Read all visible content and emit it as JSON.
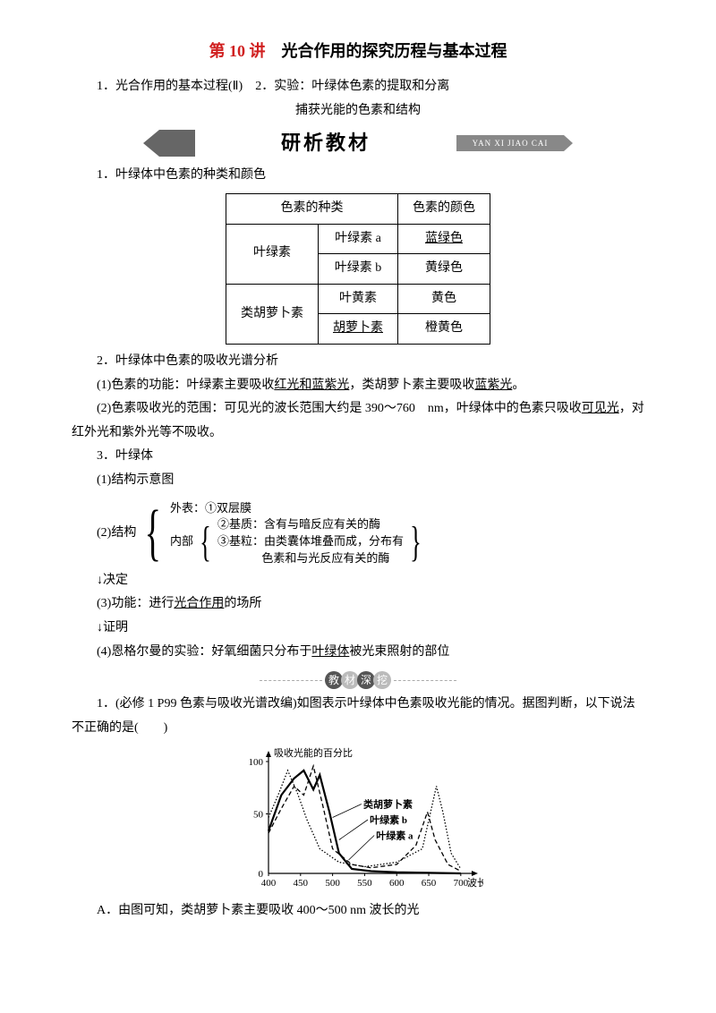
{
  "title": {
    "red": "第 10 讲",
    "black": "　光合作用的探究历程与基本过程"
  },
  "sub1": "1．光合作用的基本过程(Ⅱ)　2．实验：叶绿体色素的提取和分离",
  "sub2": "捕获光能的色素和结构",
  "banner1": {
    "text": "研析教材",
    "pinyin": "YAN XI JIAO CAI"
  },
  "sec1": "1．叶绿体中色素的种类和颜色",
  "table": {
    "h1": "色素的种类",
    "h2": "色素的颜色",
    "g1": "叶绿素",
    "g2": "类胡萝卜素",
    "r1a": "叶绿素 a",
    "r1b": "蓝绿色",
    "r2a": "叶绿素 b",
    "r2b": "黄绿色",
    "r3a": "叶黄素",
    "r3b": "黄色",
    "r4a": "胡萝卜素",
    "r4b": "橙黄色"
  },
  "sec2": "2．叶绿体中色素的吸收光谱分析",
  "p1a": "(1)色素的功能：叶绿素主要吸收",
  "p1u1": "红光和蓝紫光",
  "p1b": "，类胡萝卜素主要吸收",
  "p1u2": "蓝紫光",
  "p1c": "。",
  "p2a": "(2)色素吸收光的范围：可见光的波长范围大约是 390～760　nm，叶绿体中的色素只吸收",
  "p2u": "可见光",
  "p2b": "，对红外光和紫外光等不吸收。",
  "sec3": "3．叶绿体",
  "p3": "(1)结构示意图",
  "struct": {
    "label": "(2)结构",
    "outer": "外表：①双层膜",
    "inner_label": "内部",
    "i2": "②基质：含有与暗反应有关的酶",
    "i3a": "③基粒：由类囊体堆叠而成，分布有",
    "i3b": "色素和与光反应有关的酶"
  },
  "arrow1": "↓决定",
  "p4a": "(3)功能：进行",
  "p4u": "光合作用",
  "p4b": "的场所",
  "arrow2": "↓证明",
  "p5a": "(4)恩格尔曼的实验：好氧细菌只分布于",
  "p5u": "叶绿体",
  "p5b": "被光束照射的部位",
  "pill": {
    "c1": "教",
    "c2": "材",
    "c3": "深",
    "c4": "挖"
  },
  "q1": "1．(必修 1 P99 色素与吸收光谱改编)如图表示叶绿体中色素吸收光能的情况。据图判断，以下说法不正确的是(　　)",
  "chart": {
    "ylabel": "吸收光能的百分比",
    "xlabel": "波长(nm)",
    "yTicks": [
      "0",
      "50",
      "100"
    ],
    "xTicks": [
      "400",
      "450",
      "500",
      "550",
      "600",
      "650",
      "700"
    ],
    "l1": "类胡萝卜素",
    "l2": "叶绿素 b",
    "l3": "叶绿素 a",
    "colors": {
      "axis": "#000",
      "text": "#000",
      "grid": "#ccc",
      "carot": "#000",
      "chlb": "#000",
      "chla": "#000"
    }
  },
  "optA": "A．由图可知，类胡萝卜素主要吸收 400～500 nm 波长的光"
}
